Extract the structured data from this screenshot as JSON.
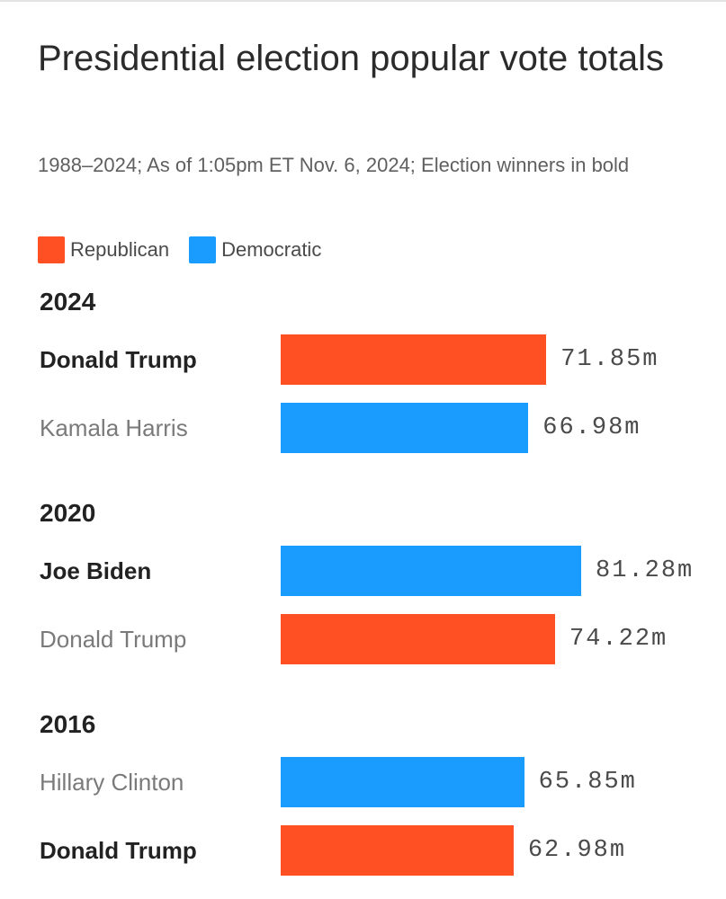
{
  "title": "Presidential election popular vote totals",
  "subtitle": "1988–2024; As of 1:05pm ET Nov. 6, 2024; Election winners in bold",
  "legend": [
    {
      "label": "Republican",
      "color": "#ff5023"
    },
    {
      "label": "Democratic",
      "color": "#1a9cff"
    }
  ],
  "chart_data": {
    "type": "bar",
    "orientation": "horizontal",
    "title": "Presidential election popular vote totals",
    "subtitle": "1988–2024; As of 1:05pm ET Nov. 6, 2024; Election winners in bold",
    "unit": "m",
    "colors": {
      "Republican": "#ff5023",
      "Democratic": "#1a9cff"
    },
    "groups": [
      {
        "year": "2024",
        "entries": [
          {
            "candidate": "Donald Trump",
            "party": "Republican",
            "value": 71.85,
            "label": "71.85m",
            "winner": true
          },
          {
            "candidate": "Kamala Harris",
            "party": "Democratic",
            "value": 66.98,
            "label": "66.98m",
            "winner": false
          }
        ]
      },
      {
        "year": "2020",
        "entries": [
          {
            "candidate": "Joe Biden",
            "party": "Democratic",
            "value": 81.28,
            "label": "81.28m",
            "winner": true
          },
          {
            "candidate": "Donald Trump",
            "party": "Republican",
            "value": 74.22,
            "label": "74.22m",
            "winner": false
          }
        ]
      },
      {
        "year": "2016",
        "entries": [
          {
            "candidate": "Hillary Clinton",
            "party": "Democratic",
            "value": 65.85,
            "label": "65.85m",
            "winner": false
          },
          {
            "candidate": "Donald Trump",
            "party": "Republican",
            "value": 62.98,
            "label": "62.98m",
            "winner": true
          }
        ]
      }
    ]
  }
}
